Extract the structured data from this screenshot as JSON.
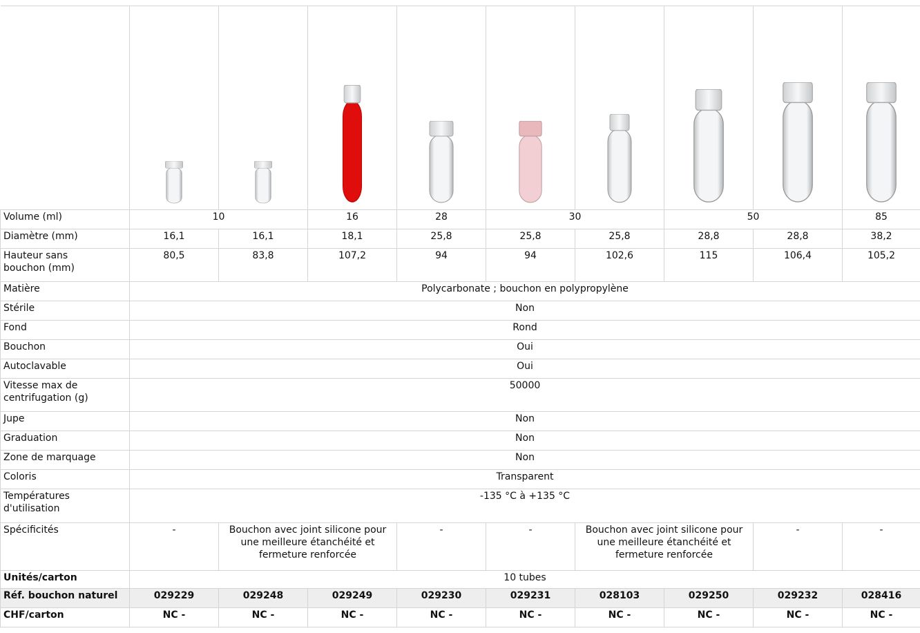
{
  "table": {
    "rows": [
      {
        "label": "Volume (ml)",
        "cells": [
          "10",
          "16",
          "28",
          "30",
          "50",
          "85"
        ]
      },
      {
        "label": "Diamètre (mm)",
        "cells": [
          "16,1",
          "16,1",
          "18,1",
          "25,8",
          "25,8",
          "25,8",
          "28,8",
          "28,8",
          "38,2"
        ]
      },
      {
        "label": "Hauteur sans bouchon (mm)",
        "cells": [
          "80,5",
          "83,8",
          "107,2",
          "94",
          "94",
          "102,6",
          "115",
          "106,4",
          "105,2"
        ]
      },
      {
        "label": "Matière",
        "cells": [
          "Polycarbonate ; bouchon en polypropylène"
        ]
      },
      {
        "label": "Stérile",
        "cells": [
          "Non"
        ]
      },
      {
        "label": "Fond",
        "cells": [
          "Rond"
        ]
      },
      {
        "label": "Bouchon",
        "cells": [
          "Oui"
        ]
      },
      {
        "label": "Autoclavable",
        "cells": [
          "Oui"
        ]
      },
      {
        "label": "Vitesse max de centrifugation (g)",
        "cells": [
          "50000"
        ]
      },
      {
        "label": "Jupe",
        "cells": [
          "Non"
        ]
      },
      {
        "label": "Graduation",
        "cells": [
          "Non"
        ]
      },
      {
        "label": "Zone de marquage",
        "cells": [
          "Non"
        ]
      },
      {
        "label": "Coloris",
        "cells": [
          "Transparent"
        ]
      },
      {
        "label": "Températures d'utilisation",
        "cells": [
          "-135 °C à +135 °C"
        ]
      },
      {
        "label": "Spécificités",
        "cells": [
          "-",
          "Bouchon avec joint silicone pour une meilleure étanchéité et fermeture renforcée",
          "-",
          "-",
          "Bouchon avec joint silicone pour une meilleure étanchéité et fermeture renforcée",
          "-",
          "-"
        ]
      },
      {
        "label": "Unités/carton",
        "cells": [
          "10 tubes"
        ]
      },
      {
        "label": "Réf. bouchon naturel",
        "cells": [
          "029229",
          "029248",
          "029249",
          "029230",
          "029231",
          "028103",
          "029250",
          "029232",
          "028416"
        ]
      },
      {
        "label": "CHF/carton",
        "cells": [
          "NC -",
          "NC -",
          "NC -",
          "NC -",
          "NC -",
          "NC -",
          "NC -",
          "NC -",
          "NC -"
        ]
      }
    ]
  }
}
